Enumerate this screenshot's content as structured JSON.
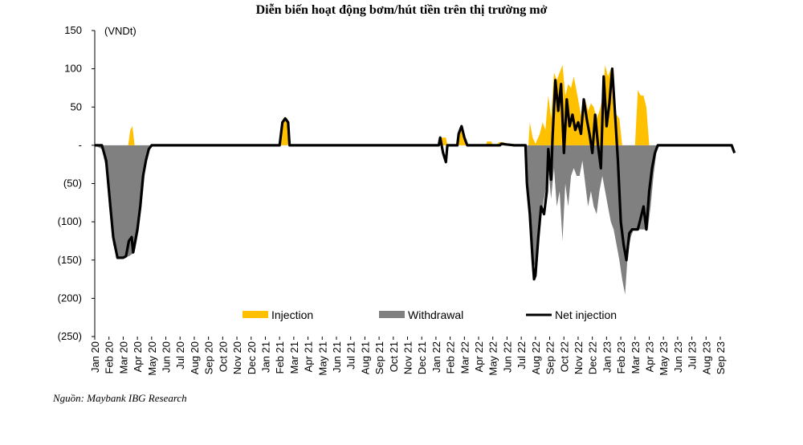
{
  "title": "Diễn biến hoạt động bơm/hút tiền trên thị trường mở",
  "source": "Nguồn: Maybank IBG Research",
  "chart_data": {
    "type": "area",
    "unit_label": "(VNDt)",
    "ylim": [
      -250,
      150
    ],
    "y_ticks": [
      150,
      100,
      50,
      0,
      -50,
      -100,
      -150,
      -200,
      -250
    ],
    "y_tick_labels": [
      "150",
      "100",
      "50",
      "-",
      "(50)",
      "(100)",
      "(150)",
      "(200)",
      "(250)"
    ],
    "categories": [
      "Jan 20",
      "Feb 20",
      "Mar 20",
      "Apr 20",
      "May 20",
      "Jun 20",
      "Jul 20",
      "Aug 20",
      "Sep 20",
      "Oct 20",
      "Nov 20",
      "Dec 20",
      "Jan 21",
      "Feb 21",
      "Mar 21",
      "Apr 21",
      "May 21",
      "Jun 21",
      "Jul 21",
      "Aug 21",
      "Sep 21",
      "Oct 21",
      "Nov 21",
      "Dec 21",
      "Jan 22",
      "Feb 22",
      "Mar 22",
      "Apr 22",
      "May 22",
      "Jun 22",
      "Jul 22",
      "Aug 22",
      "Sep 22",
      "Oct 22",
      "Nov 22",
      "Dec 22",
      "Jan 23",
      "Feb 23",
      "Mar 23",
      "Apr 23",
      "May 23",
      "Jun 23",
      "Jul 23",
      "Aug 23",
      "Sep 23"
    ],
    "colors": {
      "injection": "#FFC000",
      "withdrawal": "#808080",
      "net": "#000000"
    },
    "legend_position": "bottom",
    "series": [
      {
        "name": "Injection",
        "points": [
          [
            0,
            0
          ],
          [
            2.35,
            0
          ],
          [
            2.5,
            20
          ],
          [
            2.65,
            25
          ],
          [
            2.8,
            0
          ],
          [
            13.1,
            0
          ],
          [
            13.25,
            35
          ],
          [
            13.55,
            35
          ],
          [
            13.7,
            0
          ],
          [
            24.3,
            0
          ],
          [
            24.4,
            10
          ],
          [
            24.7,
            10
          ],
          [
            24.8,
            0
          ],
          [
            25.4,
            0
          ],
          [
            25.6,
            15
          ],
          [
            25.8,
            25
          ],
          [
            26.0,
            15
          ],
          [
            26.2,
            0
          ],
          [
            27.5,
            0
          ],
          [
            27.6,
            5
          ],
          [
            27.9,
            5
          ],
          [
            28.0,
            0
          ],
          [
            28.3,
            0
          ],
          [
            28.4,
            4
          ],
          [
            28.8,
            4
          ],
          [
            28.9,
            0
          ],
          [
            30.5,
            0
          ],
          [
            30.6,
            30
          ],
          [
            30.8,
            10
          ],
          [
            31.0,
            2
          ],
          [
            31.3,
            15
          ],
          [
            31.5,
            30
          ],
          [
            31.7,
            20
          ],
          [
            31.9,
            65
          ],
          [
            32.1,
            35
          ],
          [
            32.3,
            95
          ],
          [
            32.5,
            85
          ],
          [
            32.7,
            95
          ],
          [
            32.9,
            105
          ],
          [
            33.1,
            65
          ],
          [
            33.3,
            80
          ],
          [
            33.5,
            75
          ],
          [
            33.7,
            90
          ],
          [
            33.9,
            70
          ],
          [
            34.1,
            50
          ],
          [
            34.3,
            30
          ],
          [
            34.5,
            60
          ],
          [
            34.7,
            45
          ],
          [
            34.9,
            55
          ],
          [
            35.1,
            50
          ],
          [
            35.3,
            35
          ],
          [
            35.5,
            45
          ],
          [
            35.7,
            60
          ],
          [
            35.9,
            105
          ],
          [
            36.1,
            90
          ],
          [
            36.3,
            100
          ],
          [
            36.5,
            40
          ],
          [
            36.7,
            40
          ],
          [
            36.9,
            35
          ],
          [
            37.1,
            0
          ],
          [
            38.0,
            0
          ],
          [
            38.2,
            72
          ],
          [
            38.4,
            65
          ],
          [
            38.6,
            65
          ],
          [
            38.8,
            50
          ],
          [
            39.0,
            0
          ]
        ]
      },
      {
        "name": "Withdrawal",
        "points": [
          [
            0,
            0
          ],
          [
            0.5,
            -5
          ],
          [
            0.8,
            -30
          ],
          [
            1.0,
            -80
          ],
          [
            1.3,
            -130
          ],
          [
            1.6,
            -147
          ],
          [
            2.0,
            -147
          ],
          [
            2.4,
            -145
          ],
          [
            2.8,
            -140
          ],
          [
            3.1,
            -110
          ],
          [
            3.4,
            -60
          ],
          [
            3.6,
            -20
          ],
          [
            3.8,
            -5
          ],
          [
            4.0,
            0
          ],
          [
            30.3,
            0
          ],
          [
            30.4,
            -30
          ],
          [
            30.6,
            -90
          ],
          [
            30.8,
            -150
          ],
          [
            31.0,
            -160
          ],
          [
            31.2,
            -120
          ],
          [
            31.5,
            -80
          ],
          [
            31.7,
            -60
          ],
          [
            31.9,
            -30
          ],
          [
            32.1,
            -70
          ],
          [
            32.3,
            -30
          ],
          [
            32.5,
            -80
          ],
          [
            32.7,
            -60
          ],
          [
            32.9,
            -125
          ],
          [
            33.1,
            -50
          ],
          [
            33.3,
            -80
          ],
          [
            33.5,
            -40
          ],
          [
            33.7,
            -30
          ],
          [
            33.9,
            -40
          ],
          [
            34.1,
            -40
          ],
          [
            34.3,
            -20
          ],
          [
            34.5,
            -50
          ],
          [
            34.7,
            -80
          ],
          [
            34.9,
            -60
          ],
          [
            35.1,
            -80
          ],
          [
            35.3,
            -90
          ],
          [
            35.5,
            -60
          ],
          [
            35.7,
            -40
          ],
          [
            35.9,
            -60
          ],
          [
            36.1,
            -80
          ],
          [
            36.3,
            -100
          ],
          [
            36.5,
            -110
          ],
          [
            36.7,
            -130
          ],
          [
            36.9,
            -150
          ],
          [
            37.1,
            -175
          ],
          [
            37.3,
            -195
          ],
          [
            37.5,
            -140
          ],
          [
            37.7,
            -120
          ],
          [
            37.9,
            -110
          ],
          [
            38.1,
            -110
          ],
          [
            38.4,
            -110
          ],
          [
            38.7,
            -110
          ],
          [
            38.9,
            -110
          ],
          [
            39.1,
            -80
          ],
          [
            39.3,
            -40
          ],
          [
            39.5,
            -10
          ],
          [
            39.7,
            0
          ],
          [
            40.0,
            0
          ]
        ]
      },
      {
        "name": "Net injection",
        "points": [
          [
            0,
            0
          ],
          [
            0.5,
            0
          ],
          [
            0.8,
            -20
          ],
          [
            1.0,
            -60
          ],
          [
            1.3,
            -120
          ],
          [
            1.6,
            -147
          ],
          [
            2.0,
            -147
          ],
          [
            2.2,
            -145
          ],
          [
            2.4,
            -125
          ],
          [
            2.6,
            -120
          ],
          [
            2.7,
            -140
          ],
          [
            2.8,
            -130
          ],
          [
            3.0,
            -110
          ],
          [
            3.2,
            -80
          ],
          [
            3.4,
            -40
          ],
          [
            3.6,
            -20
          ],
          [
            3.8,
            -5
          ],
          [
            4.0,
            0
          ],
          [
            13.0,
            0
          ],
          [
            13.2,
            30
          ],
          [
            13.4,
            35
          ],
          [
            13.6,
            30
          ],
          [
            13.7,
            0
          ],
          [
            24.2,
            0
          ],
          [
            24.3,
            10
          ],
          [
            24.5,
            -10
          ],
          [
            24.7,
            -22
          ],
          [
            24.8,
            0
          ],
          [
            25.5,
            0
          ],
          [
            25.6,
            15
          ],
          [
            25.8,
            25
          ],
          [
            26.0,
            10
          ],
          [
            26.2,
            0
          ],
          [
            28.5,
            0
          ],
          [
            28.6,
            2
          ],
          [
            29.0,
            1
          ],
          [
            29.5,
            0
          ],
          [
            30.3,
            0
          ],
          [
            30.4,
            -50
          ],
          [
            30.6,
            -90
          ],
          [
            30.8,
            -150
          ],
          [
            30.9,
            -175
          ],
          [
            31.0,
            -170
          ],
          [
            31.2,
            -120
          ],
          [
            31.4,
            -80
          ],
          [
            31.6,
            -90
          ],
          [
            31.8,
            -60
          ],
          [
            31.9,
            -5
          ],
          [
            32.1,
            -45
          ],
          [
            32.2,
            10
          ],
          [
            32.4,
            85
          ],
          [
            32.6,
            45
          ],
          [
            32.8,
            80
          ],
          [
            33.0,
            -10
          ],
          [
            33.2,
            60
          ],
          [
            33.4,
            25
          ],
          [
            33.6,
            40
          ],
          [
            33.8,
            20
          ],
          [
            34.0,
            30
          ],
          [
            34.2,
            15
          ],
          [
            34.4,
            60
          ],
          [
            34.6,
            35
          ],
          [
            34.8,
            15
          ],
          [
            35.0,
            -10
          ],
          [
            35.2,
            40
          ],
          [
            35.4,
            0
          ],
          [
            35.6,
            -30
          ],
          [
            35.8,
            90
          ],
          [
            36.0,
            25
          ],
          [
            36.2,
            55
          ],
          [
            36.4,
            100
          ],
          [
            36.6,
            40
          ],
          [
            36.8,
            -20
          ],
          [
            37.0,
            -100
          ],
          [
            37.2,
            -130
          ],
          [
            37.4,
            -150
          ],
          [
            37.6,
            -115
          ],
          [
            37.8,
            -110
          ],
          [
            38.0,
            -110
          ],
          [
            38.2,
            -110
          ],
          [
            38.4,
            -95
          ],
          [
            38.6,
            -80
          ],
          [
            38.8,
            -110
          ],
          [
            39.0,
            -60
          ],
          [
            39.2,
            -30
          ],
          [
            39.4,
            -10
          ],
          [
            39.6,
            0
          ],
          [
            44.8,
            0
          ],
          [
            45.0,
            -10
          ]
        ]
      }
    ]
  },
  "legend": [
    {
      "label": "Injection",
      "kind": "injection"
    },
    {
      "label": "Withdrawal",
      "kind": "withdrawal"
    },
    {
      "label": "Net injection",
      "kind": "net"
    }
  ]
}
